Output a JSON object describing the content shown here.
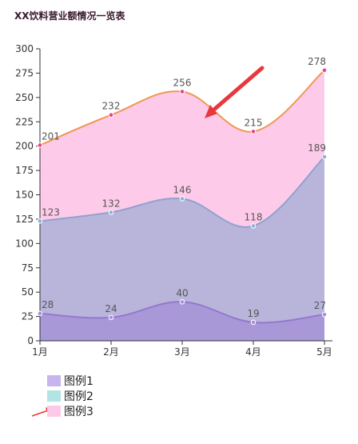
{
  "chart_data": {
    "type": "area",
    "title": "XX饮料营业额情况一览表",
    "categories": [
      "1月",
      "2月",
      "3月",
      "4月",
      "5月"
    ],
    "yticks": [
      0,
      25,
      50,
      75,
      100,
      125,
      150,
      175,
      200,
      225,
      250,
      275,
      300
    ],
    "ylim": [
      0,
      300
    ],
    "series": [
      {
        "name": "图例1",
        "values": [
          28,
          24,
          40,
          19,
          27
        ],
        "fill": "#a898d8",
        "line": "#9378cf",
        "point": "#a98de2",
        "legend_color": "#c8b4ee"
      },
      {
        "name": "图例2",
        "values": [
          123,
          132,
          146,
          118,
          189
        ],
        "fill": "#b9b5da",
        "line": "#8fa2cf",
        "point": "#8fb0da",
        "legend_color": "#b2e4e6"
      },
      {
        "name": "图例3",
        "values": [
          201,
          232,
          256,
          215,
          278
        ],
        "fill": "#fdcbe9",
        "line": "#ee9855",
        "point": "#e8418d",
        "legend_color": "#fccae8"
      }
    ],
    "grid": false,
    "legend_position": "bottom-left",
    "annotations": [
      {
        "type": "arrow",
        "description": "red arrow pointing to the 图例3 area",
        "color": "#e8383d"
      },
      {
        "type": "arrow",
        "description": "red arrow pointing to the 图例3 legend entry",
        "color": "#e8383d"
      }
    ]
  }
}
